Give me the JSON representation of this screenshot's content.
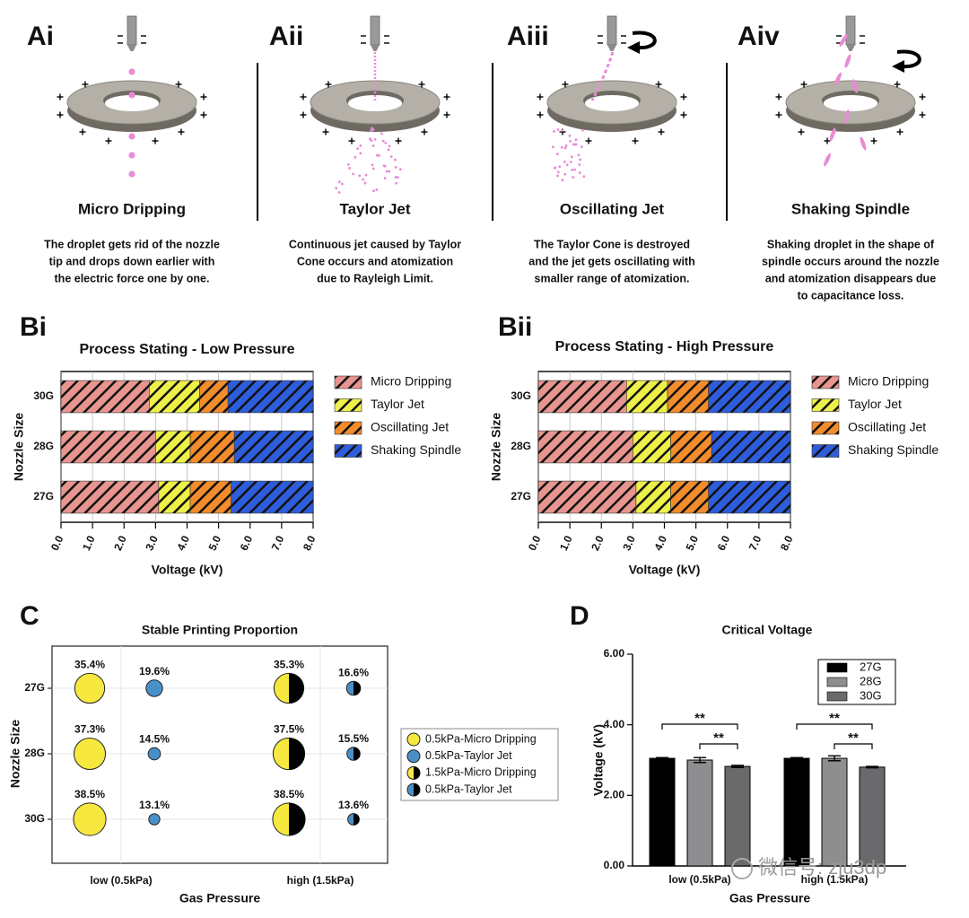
{
  "panel_a": [
    {
      "label": "Ai",
      "title": "Micro Dripping",
      "description": [
        "The droplet gets rid of the nozzle",
        "tip and drops down earlier with",
        "the electric force one by one."
      ]
    },
    {
      "label": "Aii",
      "title": "Taylor Jet",
      "description": [
        "Continuous jet caused by Taylor",
        "Cone occurs and atomization",
        "due to Rayleigh Limit."
      ]
    },
    {
      "label": "Aiii",
      "title": "Oscillating Jet",
      "description": [
        "The Taylor Cone is destroyed",
        "and the jet gets oscillating with",
        "smaller range of atomization."
      ]
    },
    {
      "label": "Aiv",
      "title": "Shaking Spindle",
      "description": [
        "Shaking droplet in the shape of",
        "spindle occurs around the nozzle",
        "and atomization disappears due",
        "to capacitance loss."
      ]
    }
  ],
  "chart_data": [
    {
      "type": "stacked-barh",
      "panel": "Bi",
      "title": "Process Stating - Low Pressure",
      "xlabel": "Voltage (kV)",
      "ylabel": "Nozzle Size",
      "categories": [
        "30G",
        "28G",
        "27G"
      ],
      "series": [
        {
          "name": "Micro Dripping",
          "color": "#e8958f",
          "values": [
            2.8,
            3.0,
            3.1
          ]
        },
        {
          "name": "Taylor Jet",
          "color": "#eef04a",
          "values": [
            1.6,
            1.1,
            1.0
          ]
        },
        {
          "name": "Oscillating Jet",
          "color": "#f28c2c",
          "values": [
            0.9,
            1.4,
            1.3
          ]
        },
        {
          "name": "Shaking Spindle",
          "color": "#2d5ddb",
          "values": [
            2.7,
            2.5,
            2.6
          ]
        }
      ],
      "xlim": [
        0,
        8
      ],
      "xticks": [
        {
          "value": 0,
          "label": "0.0"
        },
        {
          "value": 1,
          "label": "1.0"
        },
        {
          "value": 2,
          "label": "2.0"
        },
        {
          "value": 3,
          "label": "3.0"
        },
        {
          "value": 4,
          "label": "4.0"
        },
        {
          "value": 5,
          "label": "5.0"
        },
        {
          "value": 6,
          "label": "6.0"
        },
        {
          "value": 7,
          "label": "7.0"
        },
        {
          "value": 8,
          "label": "8.0"
        }
      ],
      "grid": true,
      "hatch": true,
      "legend": "right"
    },
    {
      "type": "stacked-barh",
      "panel": "Bii",
      "title": "Process Stating - High Pressure",
      "xlabel": "Voltage (kV)",
      "ylabel": "Nozzle Size",
      "categories": [
        "30G",
        "28G",
        "27G"
      ],
      "series": [
        {
          "name": "Micro Dripping",
          "color": "#e8958f",
          "values": [
            2.8,
            3.0,
            3.1
          ]
        },
        {
          "name": "Taylor Jet",
          "color": "#eef04a",
          "values": [
            1.3,
            1.2,
            1.1
          ]
        },
        {
          "name": "Oscillating Jet",
          "color": "#f28c2c",
          "values": [
            1.3,
            1.3,
            1.2
          ]
        },
        {
          "name": "Shaking Spindle",
          "color": "#2d5ddb",
          "values": [
            2.6,
            2.5,
            2.6
          ]
        }
      ],
      "xlim": [
        0,
        8
      ],
      "xticks": [
        {
          "value": 0,
          "label": "0.0"
        },
        {
          "value": 1,
          "label": "1.0"
        },
        {
          "value": 2,
          "label": "2.0"
        },
        {
          "value": 3,
          "label": "3.0"
        },
        {
          "value": 4,
          "label": "4.0"
        },
        {
          "value": 5,
          "label": "5.0"
        },
        {
          "value": 6,
          "label": "6.0"
        },
        {
          "value": 7,
          "label": "7.0"
        },
        {
          "value": 8,
          "label": "8.0"
        }
      ],
      "grid": true,
      "hatch": true,
      "legend": "right"
    },
    {
      "type": "bubble",
      "panel": "C",
      "title": "Stable Printing Proportion",
      "xlabel": "Gas Pressure",
      "ylabel": "Nozzle Size",
      "x_categories": [
        "low (0.5kPa)",
        "high (1.5kPa)"
      ],
      "y_categories": [
        "27G",
        "28G",
        "30G"
      ],
      "series": [
        {
          "name": "0.5kPa-Micro Dripping",
          "color": "#f7e83f",
          "values": [
            35.4,
            37.3,
            38.5
          ],
          "value_labels": [
            "35.4%",
            "37.3%",
            "38.5%"
          ]
        },
        {
          "name": "0.5kPa-Taylor Jet",
          "color": "#4a90c8",
          "values": [
            19.6,
            14.5,
            13.1
          ],
          "value_labels": [
            "19.6%",
            "14.5%",
            "13.1%"
          ]
        },
        {
          "name": "1.5kPa-Micro Dripping",
          "color": "#f7e83f",
          "color2": "#000000",
          "values": [
            35.3,
            37.5,
            38.5
          ],
          "value_labels": [
            "35.3%",
            "37.5%",
            "38.5%"
          ]
        },
        {
          "name": "0.5kPa-Taylor Jet",
          "color": "#4a90c8",
          "color2": "#000000",
          "values": [
            16.6,
            15.5,
            13.6
          ],
          "value_labels": [
            "16.6%",
            "15.5%",
            "13.6%"
          ]
        }
      ],
      "grid": true,
      "legend": "right"
    },
    {
      "type": "bar",
      "panel": "D",
      "title": "Critical Voltage",
      "xlabel": "Gas Pressure",
      "ylabel": "Voltage (kV)",
      "categories": [
        "low (0.5kPa)",
        "high (1.5kPa)"
      ],
      "series": [
        {
          "name": "27G",
          "color": "#000000",
          "values": [
            3.05,
            3.05
          ],
          "errors": [
            0.02,
            0.02
          ]
        },
        {
          "name": "28G",
          "color": "#8e8e90",
          "values": [
            3.0,
            3.05
          ],
          "errors": [
            0.07,
            0.07
          ]
        },
        {
          "name": "30G",
          "color": "#6a6a6c",
          "values": [
            2.82,
            2.8
          ],
          "errors": [
            0.03,
            0.02
          ]
        }
      ],
      "ylim": [
        0,
        6
      ],
      "yticks": [
        {
          "value": 0,
          "label": "0.00"
        },
        {
          "value": 2,
          "label": "2.00"
        },
        {
          "value": 4,
          "label": "4.00"
        },
        {
          "value": 6,
          "label": "6.00"
        }
      ],
      "annotations": [
        "**",
        "**",
        "**",
        "**"
      ],
      "legend": "upper right"
    }
  ],
  "watermark": "微信号: zju3dp"
}
